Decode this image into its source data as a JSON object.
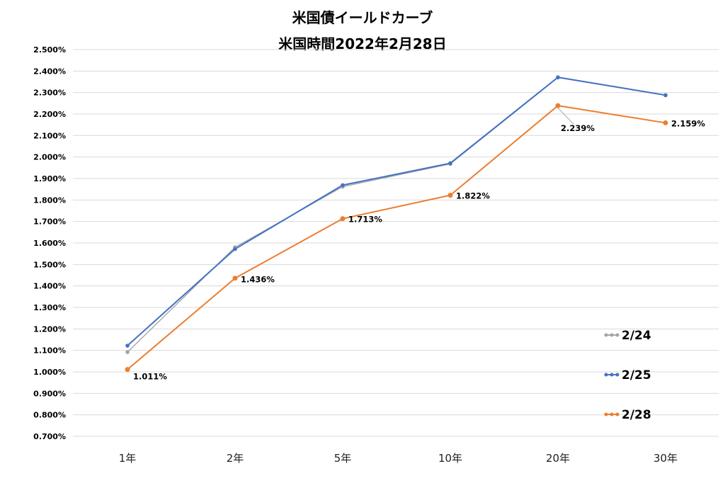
{
  "chart_data": {
    "type": "line",
    "title": "米国債イールドカーブ",
    "subtitle": "米国時間2022年2月28日",
    "categories": [
      "1年",
      "2年",
      "5年",
      "10年",
      "20年",
      "30年"
    ],
    "ylim": [
      0.7,
      2.5
    ],
    "ystep": 0.1,
    "y_tick_labels": [
      "0.700%",
      "0.800%",
      "0.900%",
      "1.000%",
      "1.100%",
      "1.200%",
      "1.300%",
      "1.400%",
      "1.500%",
      "1.600%",
      "1.700%",
      "1.800%",
      "1.900%",
      "2.000%",
      "2.100%",
      "2.200%",
      "2.300%",
      "2.400%",
      "2.500%"
    ],
    "grid": true,
    "legend_position": "bottom-right",
    "series": [
      {
        "name": "2/24",
        "color": "#a5a5a5",
        "values": [
          1.092,
          1.58,
          1.862,
          1.968,
          2.37,
          2.287
        ]
      },
      {
        "name": "2/25",
        "color": "#4472c4",
        "values": [
          1.122,
          1.572,
          1.869,
          1.971,
          2.371,
          2.288
        ]
      },
      {
        "name": "2/28",
        "color": "#ed7d31",
        "values": [
          1.011,
          1.436,
          1.713,
          1.822,
          2.239,
          2.159
        ],
        "data_labels": [
          "1.011%",
          "1.436%",
          "1.713%",
          "1.822%",
          "2.239%",
          "2.159%"
        ]
      }
    ]
  }
}
